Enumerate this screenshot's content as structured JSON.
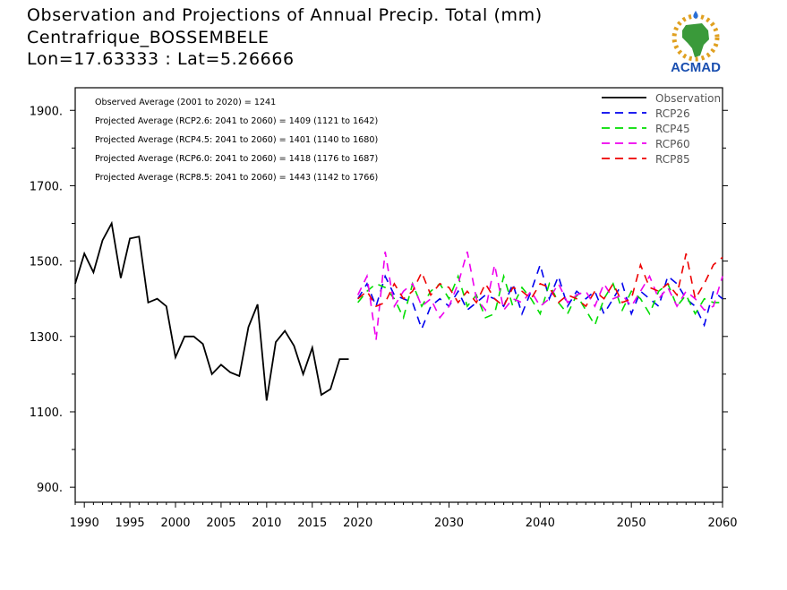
{
  "header": {
    "title": "Observation and Projections of Annual Precip. Total (mm)",
    "location": "Centrafrique_BOSSEMBELE",
    "coords": "Lon=17.63333 : Lat=5.26666"
  },
  "logo": {
    "text": "ACMAD",
    "icon": "africa-map-logo"
  },
  "annotations": [
    "Observed Average (2001 to 2020) = 1241",
    "Projected Average (RCP2.6: 2041 to 2060) = 1409 (1121 to 1642)",
    "Projected Average (RCP4.5: 2041 to 2060) = 1401 (1140 to 1680)",
    "Projected Average (RCP6.0: 2041 to 2060) = 1418 (1176 to 1687)",
    "Projected Average (RCP8.5: 2041 to 2060) = 1443 (1142 to 1766)"
  ],
  "chart_data": {
    "type": "line",
    "xlim": [
      1989,
      2060
    ],
    "ylim": [
      860,
      1960
    ],
    "x_ticks": [
      {
        "value": 1990,
        "label": "1990"
      },
      {
        "value": 1995,
        "label": "1995"
      },
      {
        "value": 2000,
        "label": "2000"
      },
      {
        "value": 2005,
        "label": "2005"
      },
      {
        "value": 2010,
        "label": "2010"
      },
      {
        "value": 2015,
        "label": "2015"
      },
      {
        "value": 2020,
        "label": "2020"
      },
      {
        "value": 2030,
        "label": "2030"
      },
      {
        "value": 2040,
        "label": "2040"
      },
      {
        "value": 2050,
        "label": "2050"
      },
      {
        "value": 2060,
        "label": "2060"
      }
    ],
    "y_ticks": [
      {
        "value": 900,
        "label": "900."
      },
      {
        "value": 1100,
        "label": "1100."
      },
      {
        "value": 1300,
        "label": "1300."
      },
      {
        "value": 1500,
        "label": "1500."
      },
      {
        "value": 1700,
        "label": "1700."
      },
      {
        "value": 1900,
        "label": "1900."
      }
    ],
    "legend_position": "top-right",
    "grid": false,
    "series": [
      {
        "name": "Observation",
        "color": "#000000",
        "dashed": false,
        "x": [
          1989,
          1990,
          1991,
          1992,
          1993,
          1994,
          1995,
          1996,
          1997,
          1998,
          1999,
          2000,
          2001,
          2002,
          2003,
          2004,
          2005,
          2006,
          2007,
          2008,
          2009,
          2010,
          2011,
          2012,
          2013,
          2014,
          2015,
          2016,
          2017,
          2018,
          2019
        ],
        "y": [
          1440,
          1520,
          1470,
          1555,
          1600,
          1455,
          1560,
          1565,
          1390,
          1400,
          1380,
          1245,
          1300,
          1300,
          1280,
          1200,
          1225,
          1205,
          1195,
          1325,
          1385,
          1130,
          1285,
          1315,
          1275,
          1200,
          1270,
          1145,
          1160,
          1240,
          1240
        ]
      },
      {
        "name": "RCP26",
        "color": "#0000ee",
        "dashed": true,
        "x": [
          2020,
          2021,
          2022,
          2023,
          2024,
          2025,
          2026,
          2027,
          2028,
          2029,
          2030,
          2031,
          2032,
          2033,
          2034,
          2035,
          2036,
          2037,
          2038,
          2039,
          2040,
          2041,
          2042,
          2043,
          2044,
          2045,
          2046,
          2047,
          2048,
          2049,
          2050,
          2051,
          2052,
          2053,
          2054,
          2055,
          2056,
          2057,
          2058,
          2059,
          2060
        ],
        "y": [
          1400,
          1440,
          1380,
          1460,
          1410,
          1400,
          1390,
          1320,
          1380,
          1400,
          1380,
          1420,
          1370,
          1390,
          1410,
          1400,
          1380,
          1440,
          1360,
          1420,
          1490,
          1400,
          1460,
          1380,
          1420,
          1400,
          1420,
          1360,
          1400,
          1440,
          1360,
          1420,
          1400,
          1380,
          1460,
          1440,
          1400,
          1380,
          1330,
          1420,
          1400
        ]
      },
      {
        "name": "RCP45",
        "color": "#00dd00",
        "dashed": true,
        "x": [
          2020,
          2021,
          2022,
          2023,
          2024,
          2025,
          2026,
          2027,
          2028,
          2029,
          2030,
          2031,
          2032,
          2033,
          2034,
          2035,
          2036,
          2037,
          2038,
          2039,
          2040,
          2041,
          2042,
          2043,
          2044,
          2045,
          2046,
          2047,
          2048,
          2049,
          2050,
          2051,
          2052,
          2053,
          2054,
          2055,
          2056,
          2057,
          2058,
          2059,
          2060
        ],
        "y": [
          1390,
          1420,
          1440,
          1430,
          1400,
          1350,
          1440,
          1380,
          1420,
          1440,
          1400,
          1460,
          1380,
          1410,
          1350,
          1360,
          1460,
          1380,
          1430,
          1400,
          1360,
          1440,
          1390,
          1360,
          1410,
          1370,
          1330,
          1400,
          1440,
          1370,
          1420,
          1400,
          1360,
          1420,
          1440,
          1380,
          1410,
          1360,
          1400,
          1390,
          1390
        ]
      },
      {
        "name": "RCP60",
        "color": "#ee00ee",
        "dashed": true,
        "x": [
          2020,
          2021,
          2022,
          2023,
          2024,
          2025,
          2026,
          2027,
          2028,
          2029,
          2030,
          2031,
          2032,
          2033,
          2034,
          2035,
          2036,
          2037,
          2038,
          2039,
          2040,
          2041,
          2042,
          2043,
          2044,
          2045,
          2046,
          2047,
          2048,
          2049,
          2050,
          2051,
          2052,
          2053,
          2054,
          2055,
          2056,
          2057,
          2058,
          2059,
          2060
        ],
        "y": [
          1410,
          1460,
          1290,
          1525,
          1380,
          1420,
          1440,
          1380,
          1400,
          1350,
          1380,
          1440,
          1525,
          1400,
          1370,
          1490,
          1370,
          1400,
          1390,
          1420,
          1380,
          1400,
          1440,
          1390,
          1410,
          1420,
          1380,
          1440,
          1400,
          1410,
          1380,
          1420,
          1460,
          1400,
          1430,
          1380,
          1420,
          1400,
          1370,
          1380,
          1460
        ]
      },
      {
        "name": "RCP85",
        "color": "#ee0000",
        "dashed": true,
        "x": [
          2020,
          2021,
          2022,
          2023,
          2024,
          2025,
          2026,
          2027,
          2028,
          2029,
          2030,
          2031,
          2032,
          2033,
          2034,
          2035,
          2036,
          2037,
          2038,
          2039,
          2040,
          2041,
          2042,
          2043,
          2044,
          2045,
          2046,
          2047,
          2048,
          2049,
          2050,
          2051,
          2052,
          2053,
          2054,
          2055,
          2056,
          2057,
          2058,
          2059,
          2060
        ],
        "y": [
          1400,
          1420,
          1380,
          1390,
          1440,
          1400,
          1420,
          1470,
          1410,
          1440,
          1430,
          1390,
          1420,
          1390,
          1440,
          1400,
          1380,
          1430,
          1420,
          1400,
          1440,
          1430,
          1390,
          1410,
          1400,
          1380,
          1420,
          1400,
          1440,
          1390,
          1400,
          1490,
          1430,
          1420,
          1440,
          1410,
          1520,
          1400,
          1440,
          1490,
          1510
        ]
      }
    ]
  }
}
